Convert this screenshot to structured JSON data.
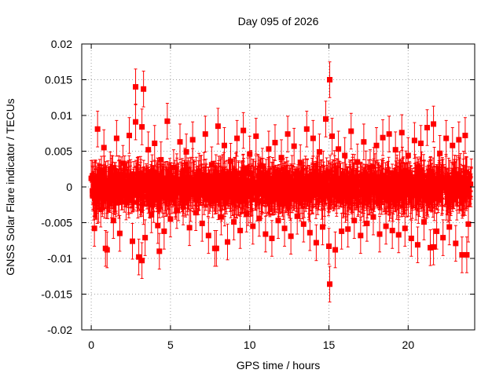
{
  "chart_data": {
    "type": "scatter",
    "title": "Day 095 of 2026",
    "xlabel": "GPS time / hours",
    "ylabel": "GNSS Solar Flare indicator / TECUs",
    "xlim": [
      -0.6,
      24.2
    ],
    "ylim": [
      -0.02,
      0.02
    ],
    "grid": true,
    "error_bars": true,
    "series_color": "#ff0000",
    "x_ticks": [
      {
        "value": 0,
        "label": "0"
      },
      {
        "value": 5,
        "label": "5"
      },
      {
        "value": 10,
        "label": "10"
      },
      {
        "value": 15,
        "label": "15"
      },
      {
        "value": 20,
        "label": "20"
      }
    ],
    "y_ticks": [
      {
        "value": 0.02,
        "label": "0.02"
      },
      {
        "value": 0.015,
        "label": "0.015"
      },
      {
        "value": 0.01,
        "label": "0.01"
      },
      {
        "value": 0.005,
        "label": "0.005"
      },
      {
        "value": 0,
        "label": "0"
      },
      {
        "value": -0.005,
        "label": "-0.005"
      },
      {
        "value": -0.01,
        "label": "-0.01"
      },
      {
        "value": -0.015,
        "label": "-0.015"
      },
      {
        "value": -0.02,
        "label": "-0.02"
      }
    ],
    "series": [
      {
        "x": [
          0.0,
          0.2,
          0.4,
          0.6,
          0.8,
          1.0,
          1.2,
          1.4,
          1.6,
          1.8,
          2.0,
          2.2,
          2.4,
          2.6,
          2.8,
          3.0,
          3.2,
          3.4,
          3.6,
          3.8,
          4.0,
          4.2,
          4.4,
          4.6,
          4.8,
          5.0,
          5.2,
          5.4,
          5.6,
          5.8,
          6.0,
          6.2,
          6.4,
          6.6,
          6.8,
          7.0,
          7.2,
          7.4,
          7.6,
          7.8,
          8.0,
          8.2,
          8.4,
          8.6,
          8.8,
          9.0,
          9.2,
          9.4,
          9.6,
          9.8,
          10.0,
          10.2,
          10.4,
          10.6,
          10.8,
          11.0,
          11.2,
          11.4,
          11.6,
          11.8,
          12.0,
          12.2,
          12.4,
          12.6,
          12.8,
          13.0,
          13.2,
          13.4,
          13.6,
          13.8,
          14.0,
          14.2,
          14.4,
          14.6,
          14.8,
          15.0,
          15.2,
          15.4,
          15.6,
          15.8,
          16.0,
          16.2,
          16.4,
          16.6,
          16.8,
          17.0,
          17.2,
          17.4,
          17.6,
          17.8,
          18.0,
          18.2,
          18.4,
          18.6,
          18.8,
          19.0,
          19.2,
          19.4,
          19.6,
          19.8,
          20.0,
          20.2,
          20.4,
          20.6,
          20.8,
          21.0,
          21.2,
          21.4,
          21.6,
          21.8,
          22.0,
          22.2,
          22.4,
          22.6,
          22.8,
          23.0,
          23.2,
          23.4,
          23.6,
          23.8,
          2.8,
          3.3,
          15.05,
          15.05,
          3.2,
          0.9,
          4.3,
          7.9,
          21.6,
          23.7
        ],
        "y": [
          0.0012,
          -0.0058,
          0.0081,
          -0.0031,
          0.0055,
          -0.0088,
          0.0024,
          -0.0047,
          0.0068,
          -0.0065,
          0.0033,
          -0.0021,
          0.0072,
          -0.0076,
          0.0091,
          -0.0098,
          0.0084,
          -0.0071,
          0.0052,
          -0.0039,
          0.0061,
          -0.0054,
          0.0038,
          -0.0062,
          0.0092,
          -0.0045,
          0.0027,
          -0.0033,
          0.0063,
          -0.0028,
          0.0049,
          -0.0057,
          0.0066,
          -0.0036,
          0.0022,
          -0.0051,
          0.0074,
          -0.0068,
          0.0031,
          -0.0086,
          0.0085,
          -0.0042,
          0.0058,
          -0.0077,
          0.0036,
          -0.0049,
          0.0068,
          -0.0061,
          0.0079,
          -0.0038,
          0.0046,
          -0.0055,
          0.0071,
          -0.0044,
          0.0029,
          -0.0066,
          0.0053,
          -0.0072,
          0.0062,
          -0.0047,
          0.0041,
          -0.0058,
          0.0074,
          -0.0069,
          0.0057,
          -0.0041,
          0.0034,
          -0.0052,
          0.0081,
          -0.0064,
          0.0068,
          -0.0078,
          0.0049,
          -0.0056,
          0.0095,
          -0.0083,
          0.0071,
          -0.0088,
          0.0053,
          -0.0062,
          0.0044,
          -0.0059,
          0.0078,
          -0.0047,
          0.0035,
          -0.0068,
          0.0063,
          -0.0051,
          0.0027,
          -0.0042,
          0.0058,
          -0.0066,
          0.0069,
          -0.0055,
          0.0074,
          -0.0061,
          0.0052,
          -0.0067,
          0.0076,
          -0.0058,
          0.0044,
          -0.0072,
          0.0065,
          -0.0081,
          0.0061,
          -0.0049,
          0.0083,
          -0.0085,
          0.0088,
          -0.0062,
          0.0047,
          -0.0071,
          0.0068,
          -0.0056,
          0.0058,
          -0.0079,
          0.0066,
          -0.0095,
          0.0072,
          -0.0052,
          0.014,
          0.0137,
          0.015,
          -0.0136,
          -0.0103,
          -0.0086,
          -0.009,
          -0.0086,
          -0.0084,
          -0.0095
        ]
      }
    ]
  }
}
